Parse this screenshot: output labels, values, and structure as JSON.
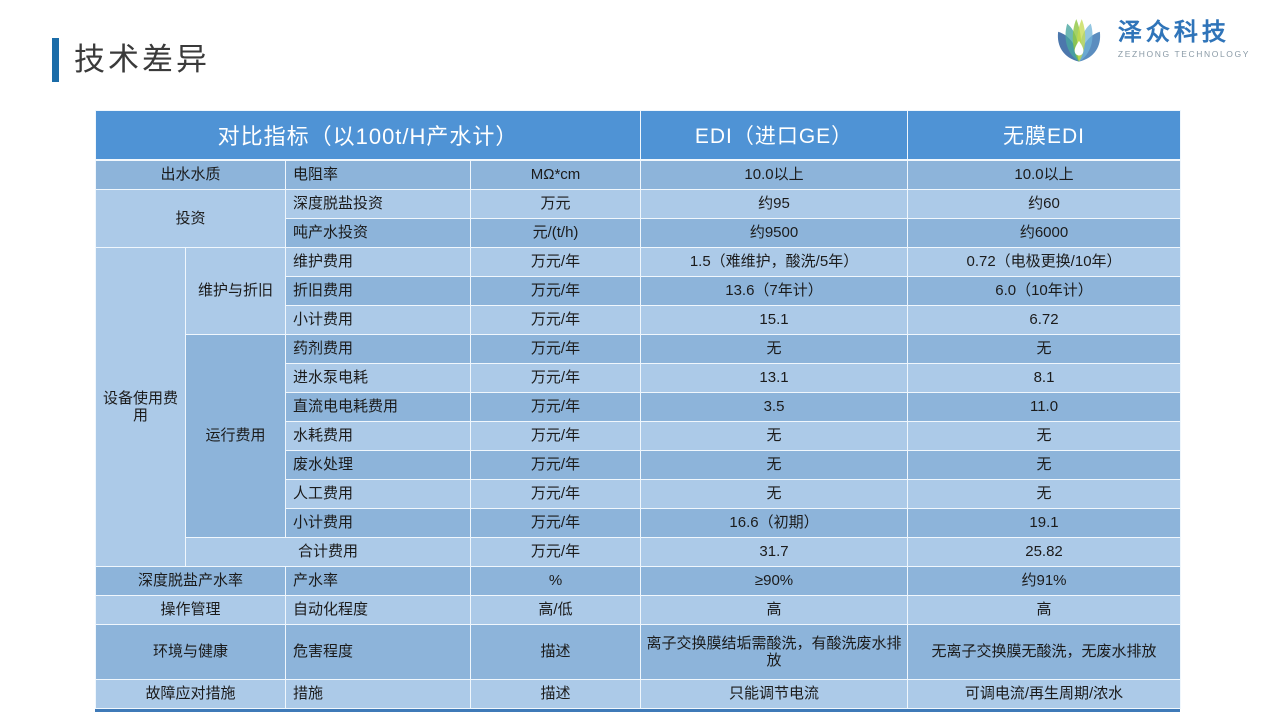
{
  "slide": {
    "title": "技术差异"
  },
  "logo": {
    "name": "泽众科技",
    "subtitle": "ZEZHONG TECHNOLOGY"
  },
  "colors": {
    "accent_bar": "#1b6ca8",
    "logo_blue": "#2f74b9",
    "header_bg": "#4f93d5",
    "band_a": "#8db4da",
    "band_b": "#accae8",
    "bottom_border": "#3f7ab8"
  },
  "table": {
    "header": [
      {
        "text": "对比指标（以100t/H产水计）",
        "colspan": 4,
        "main": true
      },
      {
        "text": "EDI（进口GE）"
      },
      {
        "text": "无膜EDI"
      }
    ],
    "rows": [
      {
        "cells": [
          {
            "text": "出水水质",
            "colspan": 2
          },
          {
            "text": "电阻率",
            "align": "left"
          },
          {
            "text": "MΩ*cm"
          },
          {
            "text": "10.0以上"
          },
          {
            "text": "10.0以上"
          }
        ]
      },
      {
        "cells": [
          {
            "text": "投资",
            "colspan": 2,
            "rowspan": 2
          },
          {
            "text": "深度脱盐投资",
            "align": "left"
          },
          {
            "text": "万元"
          },
          {
            "text": "约95"
          },
          {
            "text": "约60"
          }
        ]
      },
      {
        "cells": [
          {
            "text": "吨产水投资",
            "align": "left"
          },
          {
            "text": "元/(t/h)"
          },
          {
            "text": "约9500"
          },
          {
            "text": "约6000"
          }
        ]
      },
      {
        "cells": [
          {
            "text": "设备使用费用",
            "rowspan": 11
          },
          {
            "text": "维护与折旧",
            "rowspan": 3
          },
          {
            "text": "维护费用",
            "align": "left"
          },
          {
            "text": "万元/年"
          },
          {
            "text": "1.5（难维护，酸洗/5年）"
          },
          {
            "text": "0.72（电极更换/10年）"
          }
        ]
      },
      {
        "cells": [
          {
            "text": "折旧费用",
            "align": "left"
          },
          {
            "text": "万元/年"
          },
          {
            "text": "13.6（7年计）"
          },
          {
            "text": "6.0（10年计）"
          }
        ]
      },
      {
        "cells": [
          {
            "text": "小计费用",
            "align": "left"
          },
          {
            "text": "万元/年"
          },
          {
            "text": "15.1"
          },
          {
            "text": "6.72"
          }
        ]
      },
      {
        "cells": [
          {
            "text": "运行费用",
            "rowspan": 7
          },
          {
            "text": "药剂费用",
            "align": "left"
          },
          {
            "text": "万元/年"
          },
          {
            "text": "无"
          },
          {
            "text": "无"
          }
        ]
      },
      {
        "cells": [
          {
            "text": "进水泵电耗",
            "align": "left"
          },
          {
            "text": "万元/年"
          },
          {
            "text": "13.1"
          },
          {
            "text": "8.1"
          }
        ]
      },
      {
        "cells": [
          {
            "text": "直流电电耗费用",
            "align": "left"
          },
          {
            "text": "万元/年"
          },
          {
            "text": "3.5"
          },
          {
            "text": "11.0"
          }
        ]
      },
      {
        "cells": [
          {
            "text": "水耗费用",
            "align": "left"
          },
          {
            "text": "万元/年"
          },
          {
            "text": "无"
          },
          {
            "text": "无"
          }
        ]
      },
      {
        "cells": [
          {
            "text": "废水处理",
            "align": "left"
          },
          {
            "text": "万元/年"
          },
          {
            "text": "无"
          },
          {
            "text": "无"
          }
        ]
      },
      {
        "cells": [
          {
            "text": "人工费用",
            "align": "left"
          },
          {
            "text": "万元/年"
          },
          {
            "text": "无"
          },
          {
            "text": "无"
          }
        ]
      },
      {
        "cells": [
          {
            "text": "小计费用",
            "align": "left"
          },
          {
            "text": "万元/年"
          },
          {
            "text": "16.6（初期）"
          },
          {
            "text": "19.1"
          }
        ]
      },
      {
        "cells": [
          {
            "text": "合计费用",
            "colspan": 2
          },
          {
            "text": "万元/年"
          },
          {
            "text": "31.7"
          },
          {
            "text": "25.82"
          }
        ]
      },
      {
        "cells": [
          {
            "text": "深度脱盐产水率",
            "colspan": 2
          },
          {
            "text": "产水率",
            "align": "left"
          },
          {
            "text": "%"
          },
          {
            "text": "≥90%"
          },
          {
            "text": "约91%"
          }
        ]
      },
      {
        "cells": [
          {
            "text": "操作管理",
            "colspan": 2
          },
          {
            "text": "自动化程度",
            "align": "left"
          },
          {
            "text": "高/低"
          },
          {
            "text": "高"
          },
          {
            "text": "高"
          }
        ]
      },
      {
        "cells": [
          {
            "text": "环境与健康",
            "colspan": 2
          },
          {
            "text": "危害程度",
            "align": "left"
          },
          {
            "text": "描述"
          },
          {
            "text": "离子交换膜结垢需酸洗，有酸洗废水排放"
          },
          {
            "text": "无离子交换膜无酸洗，无废水排放"
          }
        ],
        "tall": true
      },
      {
        "cells": [
          {
            "text": "故障应对措施",
            "colspan": 2
          },
          {
            "text": "措施",
            "align": "left"
          },
          {
            "text": "描述"
          },
          {
            "text": "只能调节电流"
          },
          {
            "text": "可调电流/再生周期/浓水"
          }
        ]
      }
    ]
  }
}
